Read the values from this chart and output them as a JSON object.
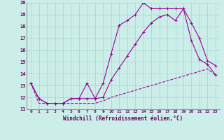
{
  "xlabel": "Windchill (Refroidissement éolien,°C)",
  "background_color": "#cceee8",
  "grid_color": "#aad8d4",
  "line_color": "#990099",
  "xmin": 0,
  "xmax": 23,
  "ymin": 11,
  "ymax": 20,
  "xtick_labels": [
    "0",
    "1",
    "2",
    "3",
    "4",
    "5",
    "6",
    "7",
    "8",
    "9",
    "10",
    "11",
    "12",
    "13",
    "14",
    "15",
    "16",
    "17",
    "18",
    "19",
    "20",
    "21",
    "22",
    "23"
  ],
  "ytick_labels": [
    "11",
    "12",
    "13",
    "14",
    "15",
    "16",
    "17",
    "18",
    "19",
    "20"
  ],
  "line1_x": [
    0,
    1,
    2,
    3,
    4,
    5,
    6,
    7,
    8,
    9,
    10,
    11,
    12,
    13,
    14,
    15,
    16,
    17,
    18,
    19,
    20,
    21,
    22,
    23
  ],
  "line1_y": [
    13.2,
    11.9,
    11.5,
    11.5,
    11.5,
    11.9,
    11.9,
    11.9,
    11.9,
    13.2,
    15.7,
    18.1,
    18.5,
    19.0,
    20.0,
    19.5,
    19.5,
    19.5,
    19.5,
    19.5,
    18.3,
    17.0,
    15.1,
    14.7
  ],
  "line2_x": [
    0,
    1,
    2,
    3,
    4,
    5,
    6,
    7,
    8,
    9,
    10,
    11,
    12,
    13,
    14,
    15,
    16,
    17,
    18,
    19,
    20,
    21,
    22,
    23
  ],
  "line2_y": [
    13.2,
    11.9,
    11.5,
    11.5,
    11.5,
    11.9,
    11.9,
    13.2,
    11.9,
    12.0,
    13.5,
    14.5,
    15.5,
    16.5,
    17.5,
    18.3,
    18.8,
    19.0,
    18.5,
    19.5,
    16.8,
    15.2,
    14.8,
    13.9
  ],
  "line3_x": [
    0,
    1,
    2,
    3,
    4,
    5,
    6,
    7,
    8,
    9,
    10,
    11,
    12,
    13,
    14,
    15,
    16,
    17,
    18,
    19,
    20,
    21,
    22,
    23
  ],
  "line3_y": [
    13.2,
    11.5,
    11.5,
    11.5,
    11.5,
    11.5,
    11.5,
    11.5,
    11.5,
    11.7,
    12.0,
    12.2,
    12.4,
    12.6,
    12.8,
    13.0,
    13.2,
    13.4,
    13.6,
    13.8,
    14.0,
    14.2,
    14.4,
    13.9
  ]
}
